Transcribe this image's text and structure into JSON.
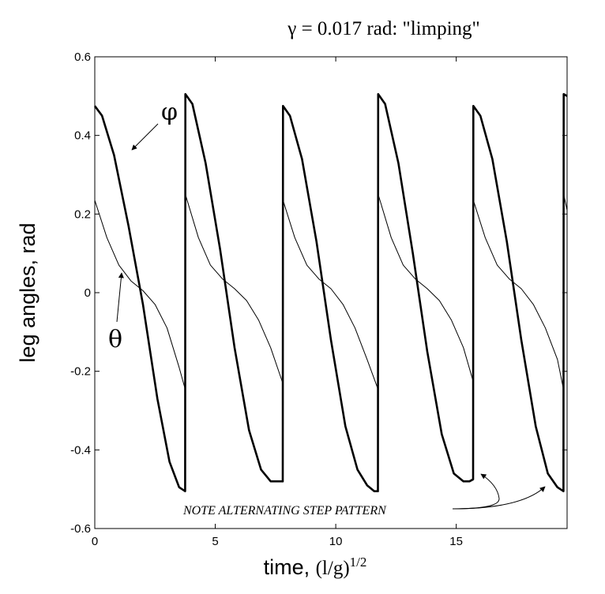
{
  "chart_data": {
    "type": "line",
    "title": "γ = 0.017 rad: \"limping\"",
    "xlabel": {
      "prefix": "time, ",
      "math": "(l/g)",
      "sup": "1/2"
    },
    "ylabel": "leg angles, rad",
    "xlim": [
      0,
      19.6
    ],
    "ylim": [
      -0.6,
      0.6
    ],
    "xticks": [
      0,
      5,
      10,
      15
    ],
    "xtick_labels": [
      "0",
      "5",
      "10",
      "15"
    ],
    "yticks": [
      -0.6,
      -0.4,
      -0.2,
      0,
      0.2,
      0.4,
      0.6
    ],
    "ytick_labels": [
      "-0.6",
      "-0.4",
      "-0.2",
      "0",
      "0.2",
      "0.4",
      "0.6"
    ],
    "grid": false,
    "series": [
      {
        "name": "φ",
        "style": "thick",
        "x": [
          0,
          0.3,
          0.8,
          1.4,
          2.0,
          2.6,
          3.1,
          3.5,
          3.75,
          3.76,
          4.05,
          4.6,
          5.2,
          5.8,
          6.4,
          6.9,
          7.3,
          7.6,
          7.8,
          7.81,
          8.1,
          8.6,
          9.2,
          9.8,
          10.4,
          10.9,
          11.3,
          11.6,
          11.75,
          11.76,
          12.05,
          12.6,
          13.2,
          13.8,
          14.4,
          14.9,
          15.3,
          15.55,
          15.7,
          15.71,
          16.0,
          16.5,
          17.1,
          17.7,
          18.3,
          18.8,
          19.2,
          19.45,
          19.46,
          19.6
        ],
        "y": [
          0.475,
          0.45,
          0.35,
          0.17,
          -0.03,
          -0.27,
          -0.43,
          -0.495,
          -0.505,
          0.505,
          0.48,
          0.33,
          0.11,
          -0.14,
          -0.35,
          -0.45,
          -0.48,
          -0.48,
          -0.48,
          0.475,
          0.45,
          0.34,
          0.13,
          -0.12,
          -0.34,
          -0.45,
          -0.49,
          -0.505,
          -0.505,
          0.505,
          0.48,
          0.33,
          0.1,
          -0.15,
          -0.36,
          -0.46,
          -0.48,
          -0.48,
          -0.475,
          0.475,
          0.45,
          0.34,
          0.13,
          -0.12,
          -0.34,
          -0.46,
          -0.495,
          -0.505,
          0.505,
          0.5
        ]
      },
      {
        "name": "θ",
        "style": "thin",
        "x": [
          0,
          0.5,
          1.0,
          1.5,
          2.0,
          2.5,
          3.0,
          3.5,
          3.75,
          3.76,
          4.3,
          4.8,
          5.3,
          5.8,
          6.3,
          6.8,
          7.3,
          7.8,
          7.81,
          8.3,
          8.8,
          9.3,
          9.8,
          10.3,
          10.8,
          11.3,
          11.75,
          11.76,
          12.3,
          12.8,
          13.3,
          13.8,
          14.3,
          14.8,
          15.3,
          15.7,
          15.71,
          16.2,
          16.7,
          17.2,
          17.7,
          18.2,
          18.7,
          19.2,
          19.45,
          19.46,
          19.6
        ],
        "y": [
          0.235,
          0.14,
          0.07,
          0.03,
          0.005,
          -0.03,
          -0.09,
          -0.19,
          -0.245,
          0.25,
          0.14,
          0.07,
          0.035,
          0.01,
          -0.02,
          -0.07,
          -0.14,
          -0.23,
          0.235,
          0.14,
          0.07,
          0.035,
          0.01,
          -0.03,
          -0.09,
          -0.17,
          -0.245,
          0.25,
          0.14,
          0.07,
          0.035,
          0.01,
          -0.02,
          -0.07,
          -0.14,
          -0.225,
          0.235,
          0.14,
          0.07,
          0.035,
          0.01,
          -0.03,
          -0.09,
          -0.17,
          -0.245,
          0.25,
          0.21
        ]
      }
    ],
    "annotations": [
      {
        "text": "φ",
        "target": "phi"
      },
      {
        "text": "θ",
        "target": "theta"
      },
      {
        "text": "NOTE ALTERNATING STEP PATTERN"
      }
    ]
  }
}
